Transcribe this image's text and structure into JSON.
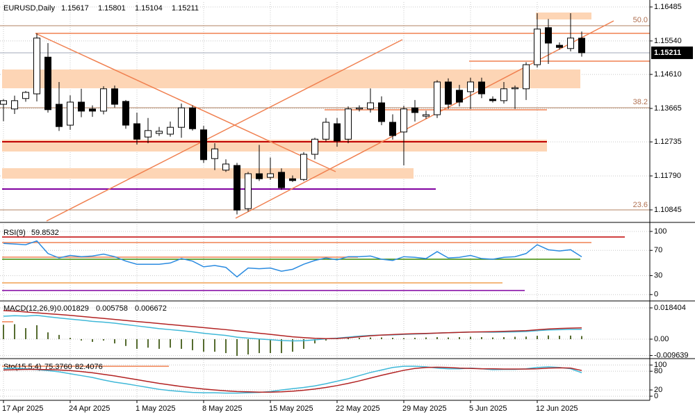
{
  "chart_data": [
    {
      "type": "candlestick",
      "title": "EURUSD,Daily",
      "categories": [
        "17 Apr 2025",
        null,
        null,
        null,
        null,
        null,
        "24 Apr 2025",
        null,
        null,
        null,
        null,
        null,
        "1 May 2025",
        null,
        null,
        null,
        null,
        null,
        "8 May 2025",
        null,
        null,
        null,
        null,
        null,
        "15 May 2025",
        null,
        null,
        null,
        null,
        null,
        "22 May 2025",
        null,
        null,
        null,
        null,
        null,
        "29 May 2025",
        null,
        null,
        null,
        null,
        null,
        "5 Jun 2025",
        null,
        null,
        null,
        null,
        null,
        "12 Jun 2025",
        null,
        null,
        null,
        null
      ],
      "open": [
        1.1378,
        1.1365,
        1.1394,
        1.1407,
        1.1509,
        1.1378,
        1.132,
        1.1384,
        1.1365,
        1.1359,
        1.1421,
        1.1386,
        1.1324,
        1.1287,
        1.1297,
        1.1295,
        1.1314,
        1.1368,
        1.1307,
        1.1227,
        1.1195,
        1.1208,
        1.1088,
        1.1185,
        1.1175,
        1.1189,
        1.1171,
        1.1169,
        1.1239,
        1.1281,
        1.1324,
        1.1281,
        1.1365,
        1.1365,
        1.1382,
        1.1328,
        1.1301,
        1.1368,
        1.1345,
        1.1349,
        1.144,
        1.1417,
        1.1413,
        1.144,
        1.1392,
        1.1388,
        1.1421,
        1.1421,
        1.1488,
        1.1591,
        1.1542,
        1.1533,
        1.15617
      ],
      "high": [
        1.1392,
        1.1402,
        1.1415,
        1.1575,
        1.1548,
        1.144,
        1.1403,
        1.1421,
        1.1375,
        1.1428,
        1.143,
        1.139,
        1.1355,
        1.134,
        1.1315,
        1.133,
        1.138,
        1.1375,
        1.1318,
        1.127,
        1.1225,
        1.1215,
        1.119,
        1.1265,
        1.123,
        1.12,
        1.118,
        1.1245,
        1.1285,
        1.134,
        1.134,
        1.1372,
        1.1375,
        1.1422,
        1.14,
        1.135,
        1.1374,
        1.139,
        1.136,
        1.1445,
        1.145,
        1.1432,
        1.1452,
        1.1452,
        1.14,
        1.144,
        1.143,
        1.1495,
        1.1631,
        1.1615,
        1.155,
        1.1631,
        1.15801
      ],
      "low": [
        1.1331,
        1.1351,
        1.1385,
        1.1386,
        1.1355,
        1.1304,
        1.1307,
        1.1342,
        1.1343,
        1.135,
        1.1369,
        1.131,
        1.1266,
        1.127,
        1.129,
        1.1288,
        1.1285,
        1.1305,
        1.1215,
        1.1195,
        1.119,
        1.1072,
        1.108,
        1.1165,
        1.1168,
        1.114,
        1.1162,
        1.1165,
        1.1225,
        1.1275,
        1.126,
        1.127,
        1.1358,
        1.1355,
        1.132,
        1.128,
        1.1208,
        1.133,
        1.1338,
        1.134,
        1.1365,
        1.1372,
        1.1365,
        1.1395,
        1.1383,
        1.138,
        1.1365,
        1.139,
        1.148,
        1.149,
        1.153,
        1.1525,
        1.15104
      ],
      "close": [
        1.1388,
        1.1388,
        1.1411,
        1.1562,
        1.1363,
        1.1316,
        1.1384,
        1.1359,
        1.1359,
        1.1421,
        1.1378,
        1.132,
        1.1281,
        1.1305,
        1.1303,
        1.1314,
        1.1368,
        1.131,
        1.1224,
        1.1254,
        1.1212,
        1.1084,
        1.1185,
        1.1171,
        1.1185,
        1.1146,
        1.1166,
        1.1239,
        1.1281,
        1.1328,
        1.1276,
        1.1365,
        1.1368,
        1.1382,
        1.133,
        1.1291,
        1.1365,
        1.1355,
        1.1349,
        1.144,
        1.1378,
        1.1384,
        1.144,
        1.1407,
        1.1388,
        1.1421,
        1.1424,
        1.1488,
        1.1587,
        1.1548,
        1.1536,
        1.1562,
        1.15211
      ],
      "ylim": [
        1.10536,
        1.1662
      ],
      "yticks": [
        1.16485,
        {
          "value": 1.1554,
          "label": "1.15540"
        },
        {
          "value": 1.1461,
          "label": "1.14610"
        },
        1.13665,
        1.12735,
        {
          "value": 1.1179,
          "label": "1.11790"
        },
        1.10845
      ],
      "annotations": [
        "50.0",
        "38.2",
        "23.6"
      ],
      "grid": true
    },
    {
      "type": "line",
      "title": "RSI(9)",
      "series": [
        {
          "color": "#2a8be0",
          "values": [
            81,
            80,
            79,
            85,
            65,
            58,
            62,
            60,
            61,
            64,
            60,
            53,
            48,
            48,
            48,
            50,
            57,
            53,
            44,
            46,
            43,
            28,
            42,
            41,
            42,
            37,
            40,
            48,
            54,
            58,
            55,
            60,
            60,
            61,
            56,
            54,
            60,
            59,
            57,
            68,
            58,
            59,
            62,
            57,
            56,
            59,
            60,
            65,
            79,
            71,
            69,
            71,
            59.8532
          ]
        }
      ],
      "ylim": [
        -9,
        111
      ],
      "yticks": [
        100,
        70,
        30,
        0
      ],
      "grid": true
    },
    {
      "type": "macd",
      "title": "MACD(12,26,9)",
      "series": [
        {
          "kind": "bar",
          "color": "#556b2f",
          "values": [
            0.0085,
            0.0088,
            0.0065,
            0.0082,
            0.004,
            0.0025,
            0.0008,
            -0.0008,
            -0.0016,
            -0.0008,
            -0.0025,
            -0.004,
            -0.0057,
            -0.005,
            -0.0057,
            -0.005,
            -0.0057,
            -0.0065,
            -0.0074,
            -0.0074,
            -0.0082,
            -0.0098,
            -0.009,
            -0.0082,
            -0.0082,
            -0.0082,
            -0.0074,
            -0.0057,
            -0.0025,
            -0.0008,
            0.0003,
            0.0006,
            0.0008,
            0.001,
            0.001,
            0.0008,
            0.0006,
            0.0008,
            0.001,
            0.0012,
            0.001,
            0.0012,
            0.0014,
            0.0012,
            0.001,
            0.0012,
            0.0014,
            0.0015,
            0.002,
            0.0022,
            0.002,
            0.0021,
            0.001829
          ]
        },
        {
          "kind": "line",
          "color": "#3fb8d8",
          "values": [
            0.0135,
            0.0138,
            0.0136,
            0.014,
            0.0132,
            0.0125,
            0.0118,
            0.0112,
            0.0105,
            0.01,
            0.0094,
            0.0086,
            0.0078,
            0.007,
            0.0062,
            0.0056,
            0.005,
            0.0043,
            0.0035,
            0.0028,
            0.0022,
            0.0012,
            0.0006,
            0.0001,
            -0.0003,
            -0.0008,
            -0.001,
            -0.0009,
            -0.0004,
            0.0002,
            0.0006,
            0.0012,
            0.0018,
            0.0022,
            0.0024,
            0.0025,
            0.0028,
            0.003,
            0.0032,
            0.0036,
            0.0038,
            0.004,
            0.0042,
            0.0042,
            0.0041,
            0.0042,
            0.0043,
            0.0045,
            0.005,
            0.0054,
            0.0056,
            0.0058,
            0.005758
          ]
        },
        {
          "kind": "line",
          "color": "#b22222",
          "values": [
            0.0168,
            0.0165,
            0.016,
            0.0155,
            0.015,
            0.0145,
            0.014,
            0.0134,
            0.0128,
            0.0122,
            0.0116,
            0.011,
            0.0104,
            0.0098,
            0.0092,
            0.0086,
            0.008,
            0.0074,
            0.0068,
            0.0062,
            0.0056,
            0.0049,
            0.0042,
            0.0035,
            0.0028,
            0.0021,
            0.0014,
            0.0009,
            0.0005,
            0.0003,
            0.0004,
            0.0008,
            0.0014,
            0.002,
            0.0024,
            0.0027,
            0.003,
            0.0032,
            0.0034,
            0.0036,
            0.0038,
            0.004,
            0.0042,
            0.0043,
            0.0044,
            0.0046,
            0.0048,
            0.005,
            0.0055,
            0.006,
            0.0063,
            0.0065,
            0.006672
          ]
        }
      ],
      "ylim": [
        -0.01104,
        0.02168
      ],
      "yticks": [
        0.018404,
        {
          "value": 0,
          "label": "0.00"
        },
        -0.009639
      ],
      "grid": true
    },
    {
      "type": "line",
      "title": "Sto(15,5,4)",
      "series": [
        {
          "color": "#3fb8d8",
          "values": [
            88,
            90,
            88,
            85,
            82,
            78,
            72,
            66,
            60,
            52,
            45,
            40,
            34,
            28,
            22,
            18,
            15,
            12,
            11,
            11,
            10,
            10,
            11,
            12,
            15,
            20,
            24,
            28,
            33,
            40,
            48,
            56,
            66,
            76,
            84,
            92,
            96,
            96,
            94,
            90,
            88,
            88,
            90,
            88,
            85,
            86,
            86,
            88,
            92,
            94,
            92,
            88,
            75.376
          ],
          "value_labels": [
            null,
            null,
            null,
            null,
            null,
            null,
            null,
            null,
            null,
            null,
            null,
            null,
            null,
            null,
            null,
            null,
            null,
            null,
            null,
            null,
            null,
            null,
            null,
            null,
            null,
            null,
            null,
            null,
            null,
            null,
            null,
            null,
            null,
            null,
            null,
            null,
            null,
            null,
            null,
            null,
            null,
            null,
            null,
            null,
            null,
            null,
            null,
            null,
            null,
            null,
            null,
            null,
            "75.3760"
          ]
        },
        {
          "color": "#b22222",
          "values": [
            84,
            85,
            86,
            86,
            85,
            84,
            82,
            79,
            75,
            70,
            65,
            59,
            53,
            47,
            41,
            36,
            31,
            27,
            23,
            20,
            17,
            15,
            14,
            13,
            13,
            14,
            16,
            19,
            23,
            28,
            34,
            41,
            49,
            58,
            67,
            75,
            83,
            89,
            92,
            93,
            92,
            90,
            89,
            88,
            88,
            87,
            87,
            87,
            88,
            90,
            91,
            90,
            82.4076
          ],
          "value_labels": [
            null,
            null,
            null,
            null,
            null,
            null,
            null,
            null,
            null,
            null,
            null,
            null,
            null,
            null,
            null,
            null,
            null,
            null,
            null,
            null,
            null,
            null,
            null,
            null,
            null,
            null,
            null,
            null,
            null,
            null,
            null,
            null,
            null,
            null,
            null,
            null,
            null,
            null,
            null,
            null,
            null,
            null,
            null,
            null,
            null,
            null,
            null,
            null,
            null,
            null,
            null,
            null,
            "82.4076"
          ]
        }
      ],
      "ylim": [
        -11,
        116
      ],
      "yticks": [
        100,
        80,
        20,
        0
      ],
      "grid": true
    }
  ]
}
